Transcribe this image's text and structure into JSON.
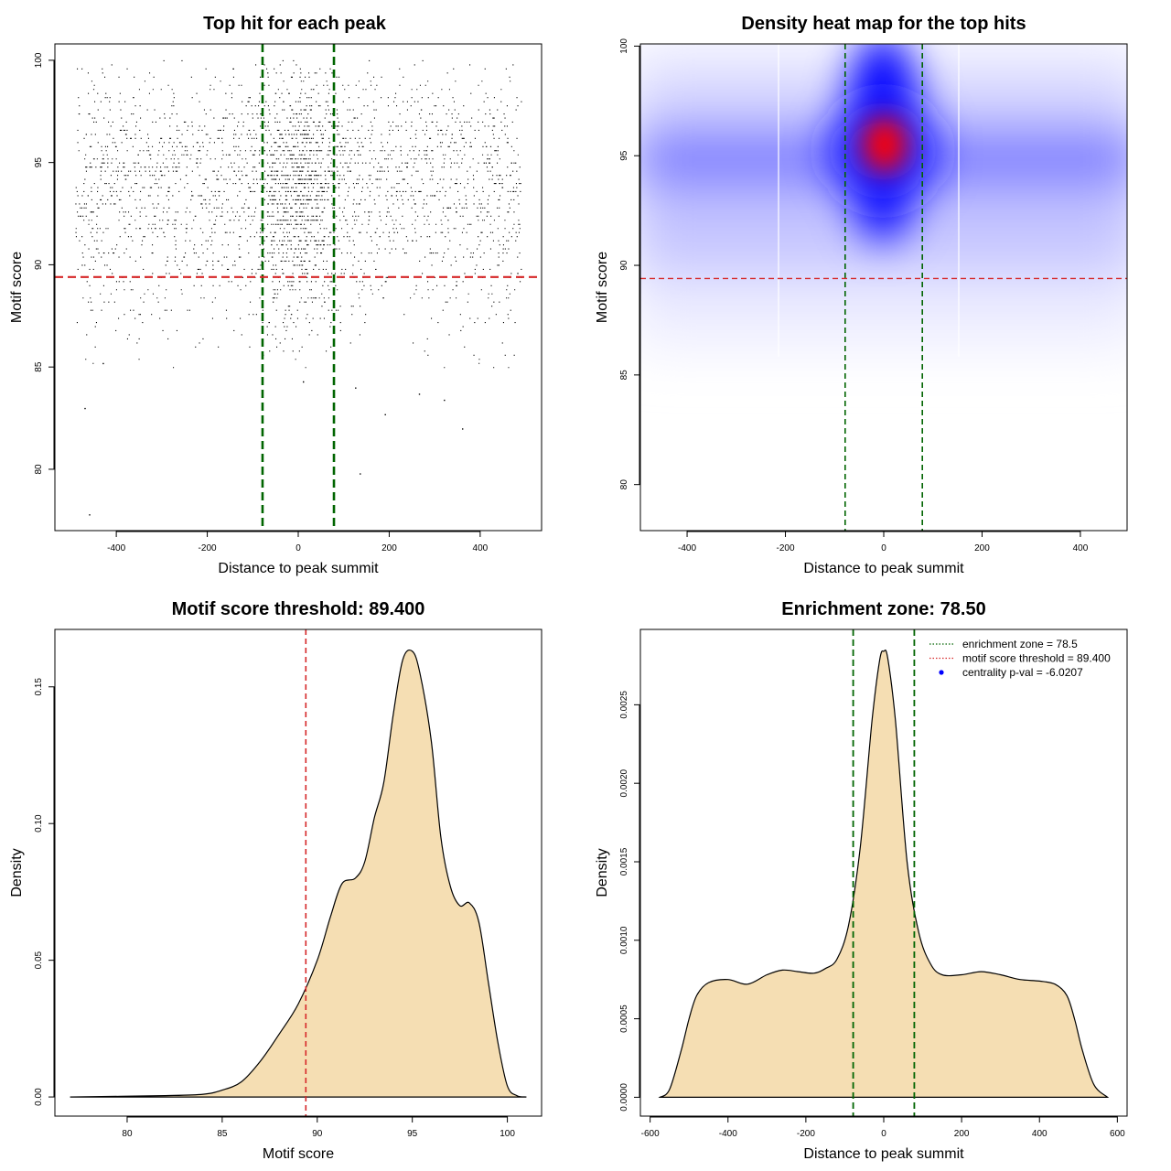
{
  "chart_data": [
    {
      "id": "p1",
      "type": "scatter",
      "title": "Top hit for each peak",
      "xlabel": "Distance to peak summit",
      "ylabel": "Motif score",
      "xlim": [
        -535,
        535
      ],
      "ylim": [
        77.0,
        100.8
      ],
      "xticks": [
        -400,
        -200,
        0,
        200,
        400
      ],
      "yticks": [
        80,
        85,
        90,
        95,
        100
      ],
      "points_note": "",
      "vlines": [
        -78.5,
        78.5
      ],
      "hline": 89.4,
      "scatter_x_range": [
        -490,
        490
      ],
      "scatter_density_peak": 0,
      "sample_points": [
        [
          -460,
          77.8
        ],
        [
          135,
          79.8
        ],
        [
          -470,
          83.0
        ],
        [
          190,
          82.7
        ],
        [
          360,
          82.0
        ],
        [
          320,
          83.4
        ],
        [
          265,
          83.7
        ],
        [
          125,
          84.0
        ],
        [
          10,
          84.3
        ],
        [
          -430,
          85.2
        ]
      ],
      "color_points": "#000000",
      "color_vlines": "#006400",
      "color_hline": "#d62728"
    },
    {
      "id": "p2",
      "type": "heatmap",
      "title": "Density heat map for the top hits",
      "xlabel": "Distance to peak summit",
      "ylabel": "Motif score",
      "xlim": [
        -495,
        495
      ],
      "ylim": [
        77.9,
        100.1
      ],
      "xticks": [
        -400,
        -200,
        0,
        200,
        400
      ],
      "yticks": [
        80,
        85,
        90,
        95,
        100
      ],
      "vlines": [
        -78.5,
        78.5
      ],
      "hline": 89.4,
      "hot_spot": {
        "x": 5,
        "y": 95.3
      },
      "palette": [
        "#ffffff",
        "#0000ff",
        "#ff0000"
      ],
      "color_vlines": "#006400",
      "color_hline": "#d62728"
    },
    {
      "id": "p3",
      "type": "area",
      "title": "Motif score threshold: 89.400",
      "xlabel": "Motif score",
      "ylabel": "Density",
      "xlim": [
        76.2,
        101.8
      ],
      "ylim": [
        -0.007,
        0.171
      ],
      "xticks": [
        80,
        85,
        90,
        95,
        100
      ],
      "yticks": [
        0.0,
        0.05,
        0.1,
        0.15
      ],
      "ytick_labels": [
        "0.00",
        "0.05",
        "0.10",
        "0.15"
      ],
      "x": [
        77.0,
        82.0,
        84.0,
        85.0,
        86.0,
        87.0,
        88.0,
        89.0,
        90.0,
        90.7,
        91.3,
        92.0,
        92.5,
        93.0,
        93.5,
        94.0,
        94.5,
        95.0,
        95.4,
        96.0,
        96.5,
        97.0,
        97.5,
        98.0,
        98.5,
        99.0,
        99.5,
        100.0,
        100.5,
        101.0
      ],
      "values": [
        0.0,
        0.0005,
        0.001,
        0.0025,
        0.0055,
        0.013,
        0.023,
        0.034,
        0.05,
        0.066,
        0.078,
        0.08,
        0.086,
        0.102,
        0.115,
        0.14,
        0.16,
        0.163,
        0.155,
        0.13,
        0.095,
        0.077,
        0.07,
        0.071,
        0.064,
        0.042,
        0.02,
        0.004,
        0.0005,
        0.0
      ],
      "vline": 89.4,
      "fill_color": "#f5deb3",
      "color_vline": "#d62728"
    },
    {
      "id": "p4",
      "type": "area",
      "title": "Enrichment zone: 78.50",
      "xlabel": "Distance to peak summit",
      "ylabel": "Density",
      "xlim": [
        -625,
        625
      ],
      "ylim": [
        -0.00012,
        0.00298
      ],
      "xticks": [
        -600,
        -400,
        -200,
        0,
        200,
        400,
        600
      ],
      "yticks": [
        0.0,
        0.0005,
        0.001,
        0.0015,
        0.002,
        0.0025
      ],
      "ytick_labels": [
        "0.0000",
        "0.0005",
        "0.0010",
        "0.0015",
        "0.0020",
        "0.0025"
      ],
      "x": [
        -575,
        -550,
        -520,
        -500,
        -480,
        -450,
        -400,
        -350,
        -300,
        -260,
        -220,
        -180,
        -150,
        -120,
        -90,
        -60,
        -30,
        -10,
        0,
        10,
        30,
        60,
        90,
        120,
        150,
        200,
        250,
        300,
        350,
        400,
        440,
        470,
        490,
        510,
        540,
        575
      ],
      "values": [
        0.0,
        5e-05,
        0.0003,
        0.0005,
        0.00065,
        0.00073,
        0.00075,
        0.00072,
        0.00078,
        0.00081,
        0.0008,
        0.00079,
        0.00082,
        0.00088,
        0.0011,
        0.0016,
        0.0024,
        0.00279,
        0.00284,
        0.0028,
        0.0024,
        0.0015,
        0.00105,
        0.00085,
        0.00078,
        0.00078,
        0.0008,
        0.00078,
        0.00075,
        0.00074,
        0.00072,
        0.00065,
        0.0005,
        0.0003,
        8e-05,
        0.0
      ],
      "vlines": [
        -78.5,
        78.5
      ],
      "fill_color": "#f5deb3",
      "color_vlines": "#006400",
      "legend": {
        "position": "top-right",
        "entries": [
          {
            "label": "enrichment zone = 78.5",
            "color": "#006400",
            "style": "dotted-line"
          },
          {
            "label": "motif score threshold = 89.400",
            "color": "#d62728",
            "style": "dotted-line"
          },
          {
            "label": "centrality p-val = -6.0207",
            "color": "#0000ff",
            "style": "point"
          }
        ]
      }
    }
  ]
}
